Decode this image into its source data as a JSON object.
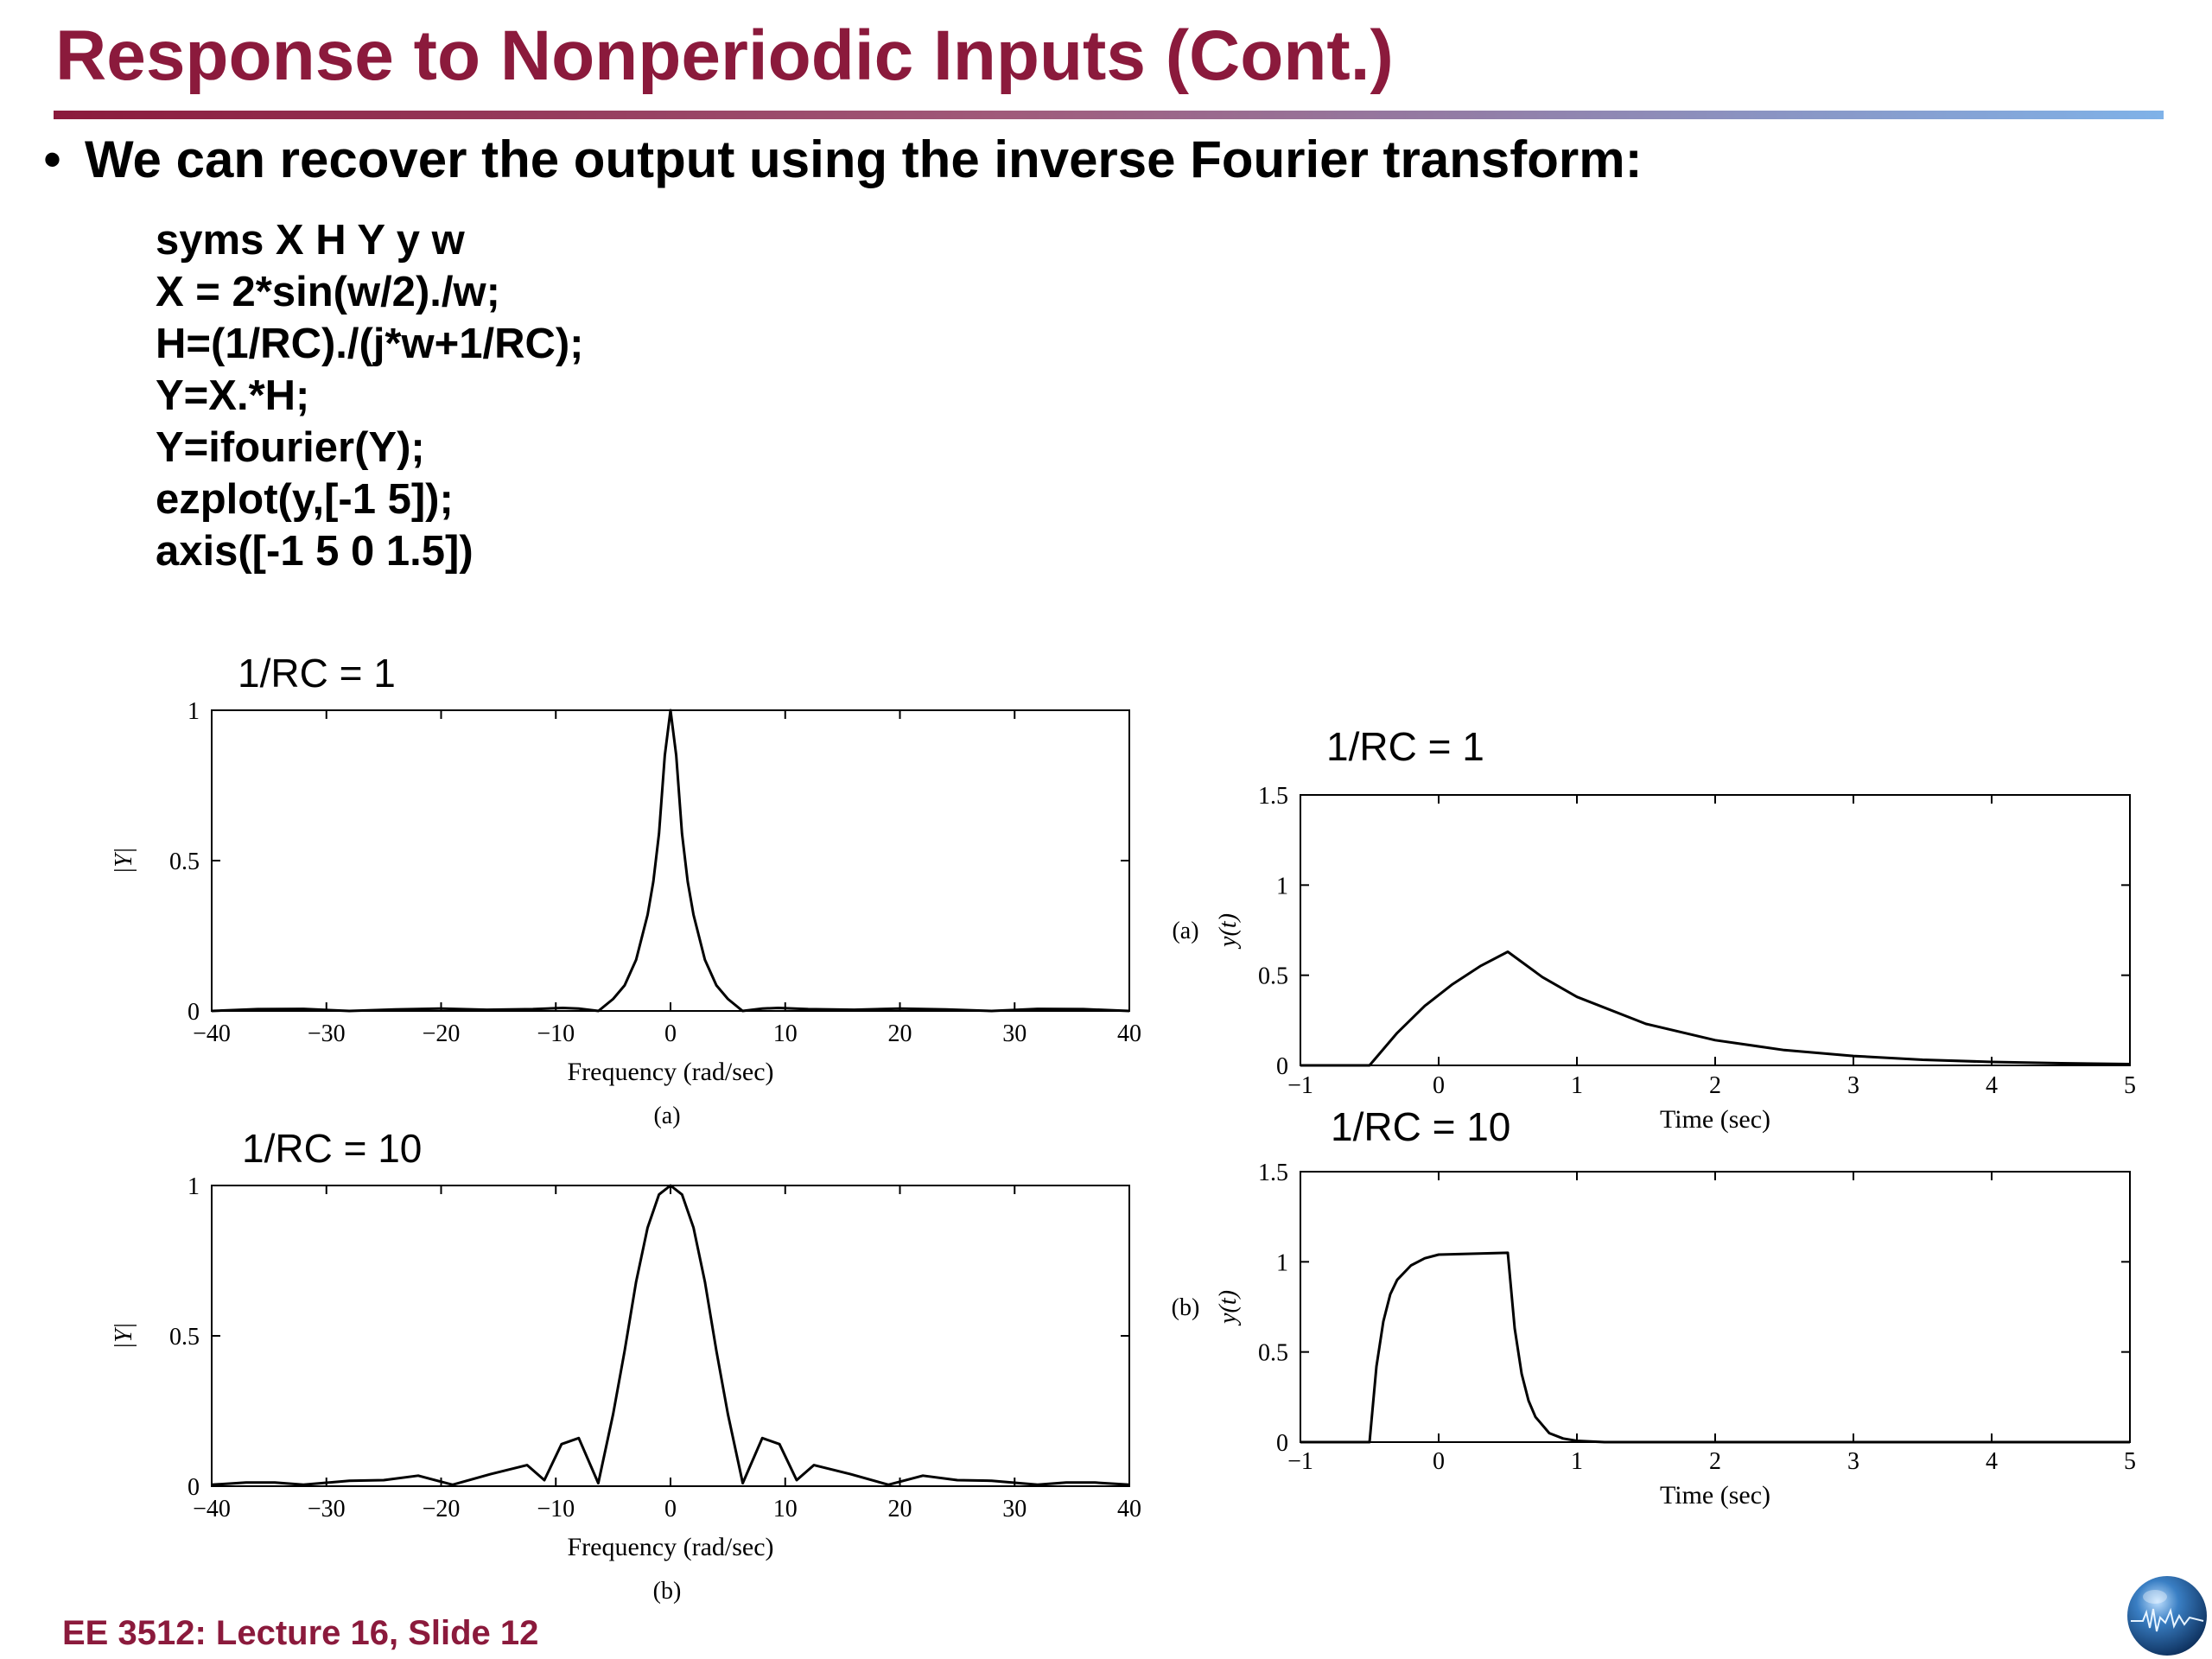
{
  "slide": {
    "title": "Response to Nonperiodic Inputs (Cont.)",
    "bullet": "We can recover the output using the inverse Fourier transform:",
    "code": [
      "syms X H Y y w",
      "X = 2*sin(w/2)./w;",
      "H=(1/RC)./(j*w+1/RC);",
      "Y=X.*H;",
      "Y=ifourier(Y);",
      "ezplot(y,[-1 5]);",
      "axis([-1 5 0 1.5])"
    ],
    "footer": "EE 3512: Lecture 16, Slide 12",
    "colors": {
      "title": "#8b1a3c",
      "rule_start": "#8b1a3c",
      "rule_end": "#7fb2e8",
      "curve": "#000000"
    }
  },
  "chart_data": [
    {
      "type": "line",
      "heading": "1/RC = 1",
      "panel_label": "(a)",
      "xlabel": "Frequency (rad/sec)",
      "ylabel": "|Y|",
      "xlim": [
        -40,
        40
      ],
      "ylim": [
        0,
        1
      ],
      "xticks": [
        "−40",
        "−30",
        "−20",
        "−10",
        "0",
        "10",
        "20",
        "30",
        "40"
      ],
      "yticks": [
        "0",
        "0.5",
        "1"
      ],
      "x": [
        -40,
        -36,
        -32,
        -28,
        -24,
        -20,
        -16,
        -12,
        -9.4,
        -8,
        -6.28,
        -5,
        -4,
        -3,
        -2,
        -1.5,
        -1,
        -0.5,
        0,
        0.5,
        1,
        1.5,
        2,
        3,
        4,
        5,
        6.28,
        8,
        9.4,
        12,
        16,
        20,
        24,
        28,
        32,
        36,
        40
      ],
      "values": [
        0,
        0.006,
        0.007,
        0,
        0.005,
        0.008,
        0.004,
        0.006,
        0.01,
        0.008,
        0,
        0.04,
        0.085,
        0.17,
        0.32,
        0.43,
        0.59,
        0.85,
        1,
        0.85,
        0.59,
        0.43,
        0.32,
        0.17,
        0.085,
        0.04,
        0,
        0.008,
        0.01,
        0.006,
        0.004,
        0.008,
        0.005,
        0,
        0.007,
        0.006,
        0
      ]
    },
    {
      "type": "line",
      "heading": "1/RC = 10",
      "panel_label": "(b)",
      "xlabel": "Frequency (rad/sec)",
      "ylabel": "|Y|",
      "xlim": [
        -40,
        40
      ],
      "ylim": [
        0,
        1
      ],
      "xticks": [
        "−40",
        "−30",
        "−20",
        "−10",
        "0",
        "10",
        "20",
        "30",
        "40"
      ],
      "yticks": [
        "0",
        "0.5",
        "1"
      ],
      "x": [
        -40,
        -37,
        -34.5,
        -32,
        -28,
        -25,
        -22,
        -19,
        -15.7,
        -12.5,
        -11,
        -9.5,
        -8,
        -6.3,
        -5,
        -4,
        -3,
        -2,
        -1,
        0,
        1,
        2,
        3,
        4,
        5,
        6.3,
        8,
        9.5,
        11,
        12.5,
        15.7,
        19,
        22,
        25,
        28,
        32,
        34.5,
        37,
        40
      ],
      "values": [
        0.005,
        0.012,
        0.012,
        0.005,
        0.018,
        0.02,
        0.035,
        0.005,
        0.04,
        0.07,
        0.02,
        0.14,
        0.16,
        0.01,
        0.24,
        0.45,
        0.68,
        0.86,
        0.97,
        1,
        0.97,
        0.86,
        0.68,
        0.45,
        0.24,
        0.01,
        0.16,
        0.14,
        0.02,
        0.07,
        0.04,
        0.005,
        0.035,
        0.02,
        0.018,
        0.005,
        0.012,
        0.012,
        0.005
      ]
    },
    {
      "type": "line",
      "heading": "1/RC = 1",
      "panel_label": "(a)",
      "xlabel": "Time (sec)",
      "ylabel": "y(t)",
      "xlim": [
        -1,
        5
      ],
      "ylim": [
        0,
        1.5
      ],
      "xticks": [
        "−1",
        "0",
        "1",
        "2",
        "3",
        "4",
        "5"
      ],
      "yticks": [
        "0",
        "0.5",
        "1",
        "1.5"
      ],
      "x": [
        -1,
        -0.5,
        -0.3,
        -0.1,
        0.1,
        0.3,
        0.5,
        0.75,
        1,
        1.5,
        2,
        2.5,
        3,
        3.5,
        4,
        4.5,
        5
      ],
      "values": [
        0,
        0,
        0.18,
        0.33,
        0.45,
        0.55,
        0.63,
        0.49,
        0.38,
        0.23,
        0.14,
        0.085,
        0.052,
        0.031,
        0.019,
        0.012,
        0.007
      ]
    },
    {
      "type": "line",
      "heading": "1/RC = 10",
      "panel_label": "(b)",
      "xlabel": "Time (sec)",
      "ylabel": "y(t)",
      "xlim": [
        -1,
        5
      ],
      "ylim": [
        0,
        1.5
      ],
      "xticks": [
        "−1",
        "0",
        "1",
        "2",
        "3",
        "4",
        "5"
      ],
      "yticks": [
        "0",
        "0.5",
        "1",
        "1.5"
      ],
      "x": [
        -1,
        -0.5,
        -0.45,
        -0.4,
        -0.35,
        -0.3,
        -0.2,
        -0.1,
        0,
        0.5,
        0.55,
        0.6,
        0.65,
        0.7,
        0.8,
        0.9,
        1,
        1.2,
        5
      ],
      "values": [
        0,
        0,
        0.42,
        0.67,
        0.82,
        0.9,
        0.98,
        1.02,
        1.04,
        1.05,
        0.63,
        0.38,
        0.23,
        0.14,
        0.05,
        0.02,
        0.007,
        0,
        0
      ]
    }
  ]
}
